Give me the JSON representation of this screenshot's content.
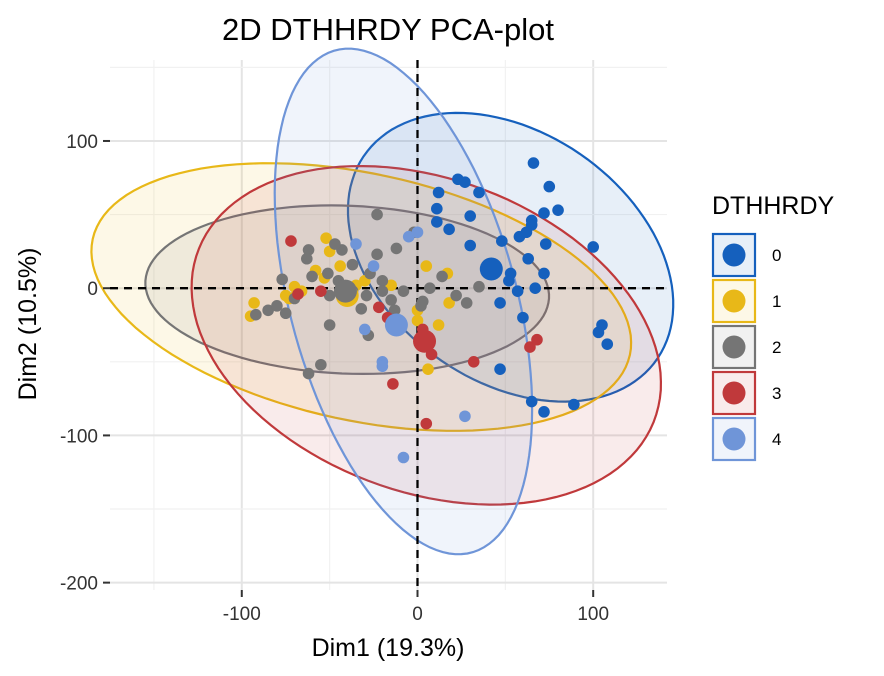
{
  "chart_data": {
    "type": "scatter",
    "title": "2D DTHHRDY PCA-plot",
    "xlabel": "Dim1 (19.3%)",
    "ylabel": "Dim2 (10.5%)",
    "xlim": [
      -175,
      142
    ],
    "ylim": [
      -205,
      155
    ],
    "x_ticks": [
      -100,
      0,
      100
    ],
    "y_ticks": [
      100,
      0,
      -100,
      -200
    ],
    "grid": true,
    "reference_lines": {
      "x": 0,
      "y": 0,
      "style": "dashed"
    },
    "legend": {
      "title": "DTHHRDY",
      "position": "right"
    },
    "series": [
      {
        "name": "0",
        "color": "#1560BD",
        "ellipse": {
          "cx": 53,
          "cy": 21,
          "rx": 110,
          "ry": 78,
          "angle": -50
        },
        "centroid": [
          42,
          13
        ],
        "points": [
          [
            66,
            85
          ],
          [
            75,
            69
          ],
          [
            23,
            74
          ],
          [
            27,
            72
          ],
          [
            12,
            65
          ],
          [
            35,
            65
          ],
          [
            65,
            46
          ],
          [
            65,
            43
          ],
          [
            80,
            53
          ],
          [
            72,
            51
          ],
          [
            58,
            35
          ],
          [
            62,
            38
          ],
          [
            73,
            30
          ],
          [
            100,
            28
          ],
          [
            30,
            49
          ],
          [
            11,
            54
          ],
          [
            11,
            45
          ],
          [
            30,
            29
          ],
          [
            18,
            40
          ],
          [
            48,
            32
          ],
          [
            63,
            20
          ],
          [
            53,
            10
          ],
          [
            72,
            10
          ],
          [
            47,
            -10
          ],
          [
            57,
            -2
          ],
          [
            67,
            0
          ],
          [
            52,
            5
          ],
          [
            60,
            -20
          ],
          [
            105,
            -25
          ],
          [
            103,
            -30
          ],
          [
            108,
            -38
          ],
          [
            65,
            -77
          ],
          [
            72,
            -84
          ],
          [
            89,
            -79
          ],
          [
            47,
            -55
          ]
        ]
      },
      {
        "name": "1",
        "color": "#E8B818",
        "ellipse": {
          "cx": -32,
          "cy": -6,
          "rx": 158,
          "ry": 83,
          "angle": -16
        },
        "centroid": [
          -40,
          -5
        ],
        "points": [
          [
            -93,
            -10
          ],
          [
            -95,
            -19
          ],
          [
            -70,
            -6
          ],
          [
            -66,
            -2
          ],
          [
            -73,
            -7
          ],
          [
            -50,
            25
          ],
          [
            -30,
            5
          ],
          [
            -40,
            -6
          ],
          [
            -15,
            2
          ],
          [
            0,
            -15
          ],
          [
            0,
            -22
          ],
          [
            5,
            15
          ],
          [
            6,
            -55
          ],
          [
            17,
            10
          ],
          [
            -52,
            34
          ],
          [
            -53,
            7
          ],
          [
            -35,
            2
          ],
          [
            -58,
            12
          ],
          [
            12,
            -25
          ],
          [
            18,
            -10
          ],
          [
            -44,
            15
          ],
          [
            -75,
            -5
          ],
          [
            -70,
            1
          ]
        ]
      },
      {
        "name": "2",
        "color": "#757575",
        "ellipse": {
          "cx": -40,
          "cy": -1,
          "rx": 115,
          "ry": 57,
          "angle": -3
        },
        "centroid": [
          -41,
          -2
        ],
        "points": [
          [
            -23,
            50
          ],
          [
            -12,
            27
          ],
          [
            -2,
            38
          ],
          [
            -43,
            26
          ],
          [
            -47,
            30
          ],
          [
            -37,
            16
          ],
          [
            -23,
            23
          ],
          [
            -20,
            5
          ],
          [
            -62,
            26
          ],
          [
            -77,
            6
          ],
          [
            -70,
            -7
          ],
          [
            -60,
            8
          ],
          [
            -51,
            10
          ],
          [
            -45,
            5
          ],
          [
            -27,
            10
          ],
          [
            -20,
            -2
          ],
          [
            -37,
            -2
          ],
          [
            -15,
            -8
          ],
          [
            -32,
            -14
          ],
          [
            -50,
            -25
          ],
          [
            -28,
            -32
          ],
          [
            -10,
            -24
          ],
          [
            -8,
            -2
          ],
          [
            2,
            -12
          ],
          [
            7,
            0
          ],
          [
            14,
            8
          ],
          [
            22,
            -5
          ],
          [
            28,
            -10
          ],
          [
            35,
            1
          ],
          [
            -55,
            -52
          ],
          [
            -62,
            -58
          ],
          [
            -92,
            -18
          ],
          [
            -85,
            -15
          ],
          [
            -50,
            -5
          ],
          [
            -29,
            -5
          ],
          [
            -13,
            -15
          ],
          [
            3,
            -9
          ],
          [
            -63,
            20
          ],
          [
            -80,
            -12
          ],
          [
            -75,
            -17
          ]
        ]
      },
      {
        "name": "3",
        "color": "#C0393B",
        "ellipse": {
          "cx": 5,
          "cy": -32,
          "rx": 143,
          "ry": 103,
          "angle": -31
        },
        "centroid": [
          4,
          -36
        ],
        "points": [
          [
            -72,
            32
          ],
          [
            -55,
            -2
          ],
          [
            -22,
            -13
          ],
          [
            -17,
            -20
          ],
          [
            3,
            -28
          ],
          [
            8,
            -45
          ],
          [
            -14,
            -65
          ],
          [
            5,
            -92
          ],
          [
            32,
            -50
          ],
          [
            64,
            -40
          ],
          [
            68,
            -35
          ],
          [
            -68,
            -4
          ]
        ]
      },
      {
        "name": "4",
        "color": "#6F95D8",
        "ellipse": {
          "cx": -8,
          "cy": -9,
          "rx": 175,
          "ry": 65,
          "angle": -78
        },
        "centroid": [
          -12,
          -25
        ],
        "points": [
          [
            -35,
            30
          ],
          [
            -5,
            35
          ],
          [
            0,
            38
          ],
          [
            -30,
            -28
          ],
          [
            -20,
            -50
          ],
          [
            -20,
            -53
          ],
          [
            -8,
            -115
          ],
          [
            27,
            -87
          ],
          [
            -25,
            15
          ]
        ]
      }
    ]
  }
}
